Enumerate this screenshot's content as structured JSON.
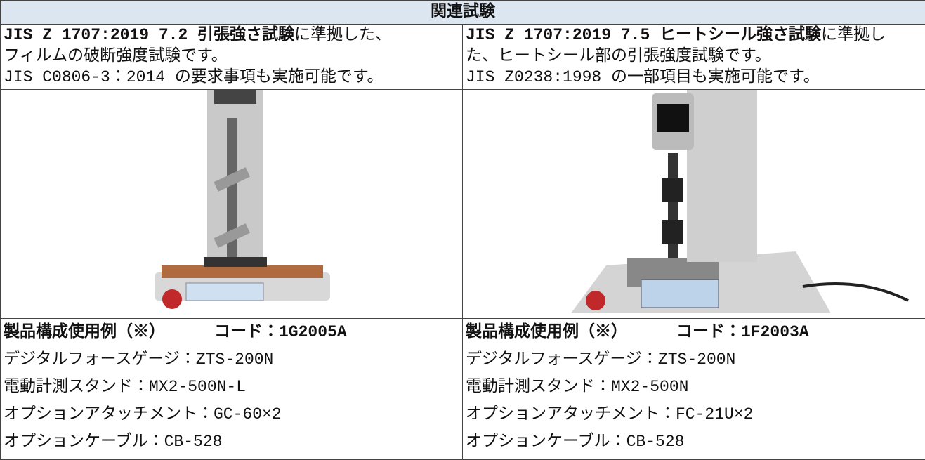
{
  "header": {
    "title": "関連試験"
  },
  "columns": [
    {
      "intro": {
        "bold": "JIS Z 1707:2019 7.2 引張強さ試験",
        "text": "に準拠した、"
      },
      "lines": [
        "フィルムの破断強度試験です。",
        "JIS C0806-3：2014 の要求事項も実施可能です。"
      ],
      "config": {
        "heading": "製品構成使用例（※）",
        "code": "コード：1G2005A",
        "items": [
          "デジタルフォースゲージ：ZTS-200N",
          "電動計測スタンド：MX2-500N-L",
          "オプションアタッチメント：GC-60×2",
          "オプションケーブル：CB-528"
        ]
      }
    },
    {
      "intro": {
        "bold": "JIS Z 1707:2019 7.5 ヒートシール強さ試験",
        "text": "に準拠し"
      },
      "lines": [
        "た、ヒートシール部の引張強度試験です。",
        "JIS Z0238:1998 の一部項目も実施可能です。"
      ],
      "config": {
        "heading": "製品構成使用例（※）",
        "code": "コード：1F2003A",
        "items": [
          "デジタルフォースゲージ：ZTS-200N",
          "電動計測スタンド：MX2-500N",
          "オプションアタッチメント：FC-21U×2",
          "オプションケーブル：CB-528"
        ]
      }
    }
  ]
}
